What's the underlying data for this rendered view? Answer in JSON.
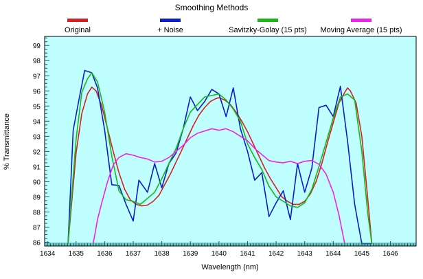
{
  "chart_data": {
    "type": "line",
    "title": "Smoothing Methods",
    "xlabel": "Wavelength (nm)",
    "ylabel": "% Transmittance",
    "xlim": [
      1633.9,
      1646.9
    ],
    "ylim": [
      85.75,
      99.6
    ],
    "xticks": [
      "1634",
      "1635",
      "1636",
      "1637",
      "1638",
      "1639",
      "1640",
      "1641",
      "1642",
      "1643",
      "1644",
      "1645",
      "1646"
    ],
    "yticks": [
      "86",
      "87",
      "88",
      "89",
      "90",
      "91",
      "92",
      "93",
      "94",
      "95",
      "96",
      "97",
      "98",
      "99"
    ],
    "grid": false,
    "legend_position": "top",
    "plot_background": "#bfffff",
    "series": [
      {
        "name": "Original",
        "color": "#d42020",
        "x": [
          1634.72,
          1635.0,
          1635.2,
          1635.4,
          1635.55,
          1635.7,
          1635.9,
          1636.1,
          1636.3,
          1636.5,
          1636.7,
          1636.9,
          1637.1,
          1637.3,
          1637.5,
          1637.7,
          1637.9,
          1638.1,
          1638.3,
          1638.5,
          1638.7,
          1638.9,
          1639.1,
          1639.3,
          1639.5,
          1639.7,
          1639.9,
          1640.0,
          1640.2,
          1640.4,
          1640.6,
          1640.8,
          1641.0,
          1641.2,
          1641.4,
          1641.6,
          1641.8,
          1642.0,
          1642.2,
          1642.4,
          1642.6,
          1642.8,
          1643.0,
          1643.2,
          1643.4,
          1643.6,
          1643.8,
          1644.0,
          1644.2,
          1644.4,
          1644.5,
          1644.6,
          1644.8,
          1645.0,
          1645.2,
          1645.35
        ],
        "y": [
          85.9,
          91.9,
          94.5,
          95.8,
          96.25,
          96.0,
          95.0,
          93.5,
          92.0,
          90.6,
          89.5,
          88.8,
          88.5,
          88.4,
          88.45,
          88.7,
          89.1,
          89.8,
          90.5,
          91.3,
          92.1,
          92.9,
          93.7,
          94.4,
          94.9,
          95.3,
          95.5,
          95.55,
          95.4,
          95.1,
          94.6,
          94.0,
          93.3,
          92.5,
          91.7,
          90.9,
          90.2,
          89.6,
          89.0,
          88.7,
          88.5,
          88.5,
          88.7,
          89.2,
          90.0,
          91.2,
          92.6,
          93.9,
          95.2,
          95.9,
          96.2,
          96.0,
          95.2,
          93.0,
          89.0,
          85.9
        ]
      },
      {
        "name": "+ Noise",
        "color": "#0a1ccc",
        "x": [
          1634.72,
          1634.9,
          1635.1,
          1635.3,
          1635.55,
          1635.75,
          1636.0,
          1636.25,
          1636.5,
          1636.75,
          1637.0,
          1637.2,
          1637.5,
          1637.75,
          1638.0,
          1638.25,
          1638.5,
          1638.75,
          1639.0,
          1639.25,
          1639.5,
          1639.75,
          1640.0,
          1640.25,
          1640.5,
          1640.75,
          1641.0,
          1641.25,
          1641.5,
          1641.75,
          1642.0,
          1642.25,
          1642.5,
          1642.75,
          1643.0,
          1643.25,
          1643.5,
          1643.75,
          1644.0,
          1644.25,
          1644.5,
          1644.75,
          1645.0,
          1645.2,
          1645.35
        ],
        "y": [
          85.9,
          93.4,
          95.4,
          97.35,
          97.2,
          96.2,
          93.4,
          89.8,
          89.75,
          88.5,
          87.4,
          90.1,
          89.3,
          91.2,
          89.6,
          91.2,
          91.9,
          93.5,
          95.6,
          94.7,
          95.3,
          96.1,
          95.8,
          94.3,
          96.2,
          93.5,
          92.0,
          90.1,
          90.6,
          87.7,
          88.6,
          89.4,
          87.5,
          91.2,
          89.3,
          90.9,
          94.9,
          95.05,
          94.3,
          96.3,
          92.7,
          88.5,
          85.9,
          85.9,
          85.9
        ]
      },
      {
        "name": "Savitzky-Golay (15 pts)",
        "color": "#18b818",
        "x": [
          1634.72,
          1635.0,
          1635.2,
          1635.4,
          1635.55,
          1635.75,
          1636.0,
          1636.25,
          1636.5,
          1636.75,
          1637.0,
          1637.25,
          1637.5,
          1637.75,
          1638.0,
          1638.25,
          1638.5,
          1638.75,
          1639.0,
          1639.25,
          1639.5,
          1639.75,
          1640.0,
          1640.25,
          1640.5,
          1640.75,
          1641.0,
          1641.25,
          1641.5,
          1641.75,
          1642.0,
          1642.25,
          1642.5,
          1642.75,
          1643.0,
          1643.25,
          1643.5,
          1643.75,
          1644.0,
          1644.25,
          1644.5,
          1644.75,
          1645.0,
          1645.2,
          1645.35
        ],
        "y": [
          85.9,
          92.8,
          95.9,
          96.8,
          97.2,
          96.6,
          94.6,
          91.7,
          89.4,
          88.8,
          88.7,
          88.5,
          88.9,
          89.3,
          90.2,
          91.2,
          92.2,
          93.5,
          94.6,
          95.1,
          95.6,
          95.7,
          95.8,
          95.4,
          94.8,
          94.0,
          92.5,
          91.6,
          90.8,
          89.7,
          89.0,
          88.7,
          88.4,
          88.3,
          88.6,
          89.5,
          91.0,
          92.6,
          94.2,
          95.6,
          95.8,
          95.4,
          92.0,
          88.0,
          85.9
        ]
      },
      {
        "name": "Moving Average (15 pts)",
        "color": "#ee22ee",
        "x": [
          1635.6,
          1635.75,
          1635.9,
          1636.1,
          1636.3,
          1636.5,
          1636.75,
          1637.0,
          1637.25,
          1637.5,
          1637.75,
          1638.0,
          1638.25,
          1638.5,
          1638.75,
          1639.0,
          1639.25,
          1639.5,
          1639.75,
          1640.0,
          1640.25,
          1640.5,
          1640.75,
          1641.0,
          1641.25,
          1641.5,
          1641.75,
          1642.0,
          1642.25,
          1642.5,
          1642.75,
          1643.0,
          1643.25,
          1643.5,
          1643.75,
          1644.0,
          1644.2,
          1644.4
        ],
        "y": [
          85.9,
          87.5,
          88.6,
          90.0,
          91.1,
          91.6,
          91.85,
          91.75,
          91.6,
          91.5,
          91.3,
          91.35,
          91.6,
          92.0,
          92.4,
          92.9,
          93.2,
          93.35,
          93.5,
          93.4,
          93.5,
          93.3,
          93.0,
          92.7,
          92.2,
          91.8,
          91.4,
          91.3,
          91.25,
          91.35,
          91.2,
          91.35,
          91.4,
          91.15,
          90.5,
          89.3,
          87.8,
          85.9
        ]
      }
    ]
  }
}
